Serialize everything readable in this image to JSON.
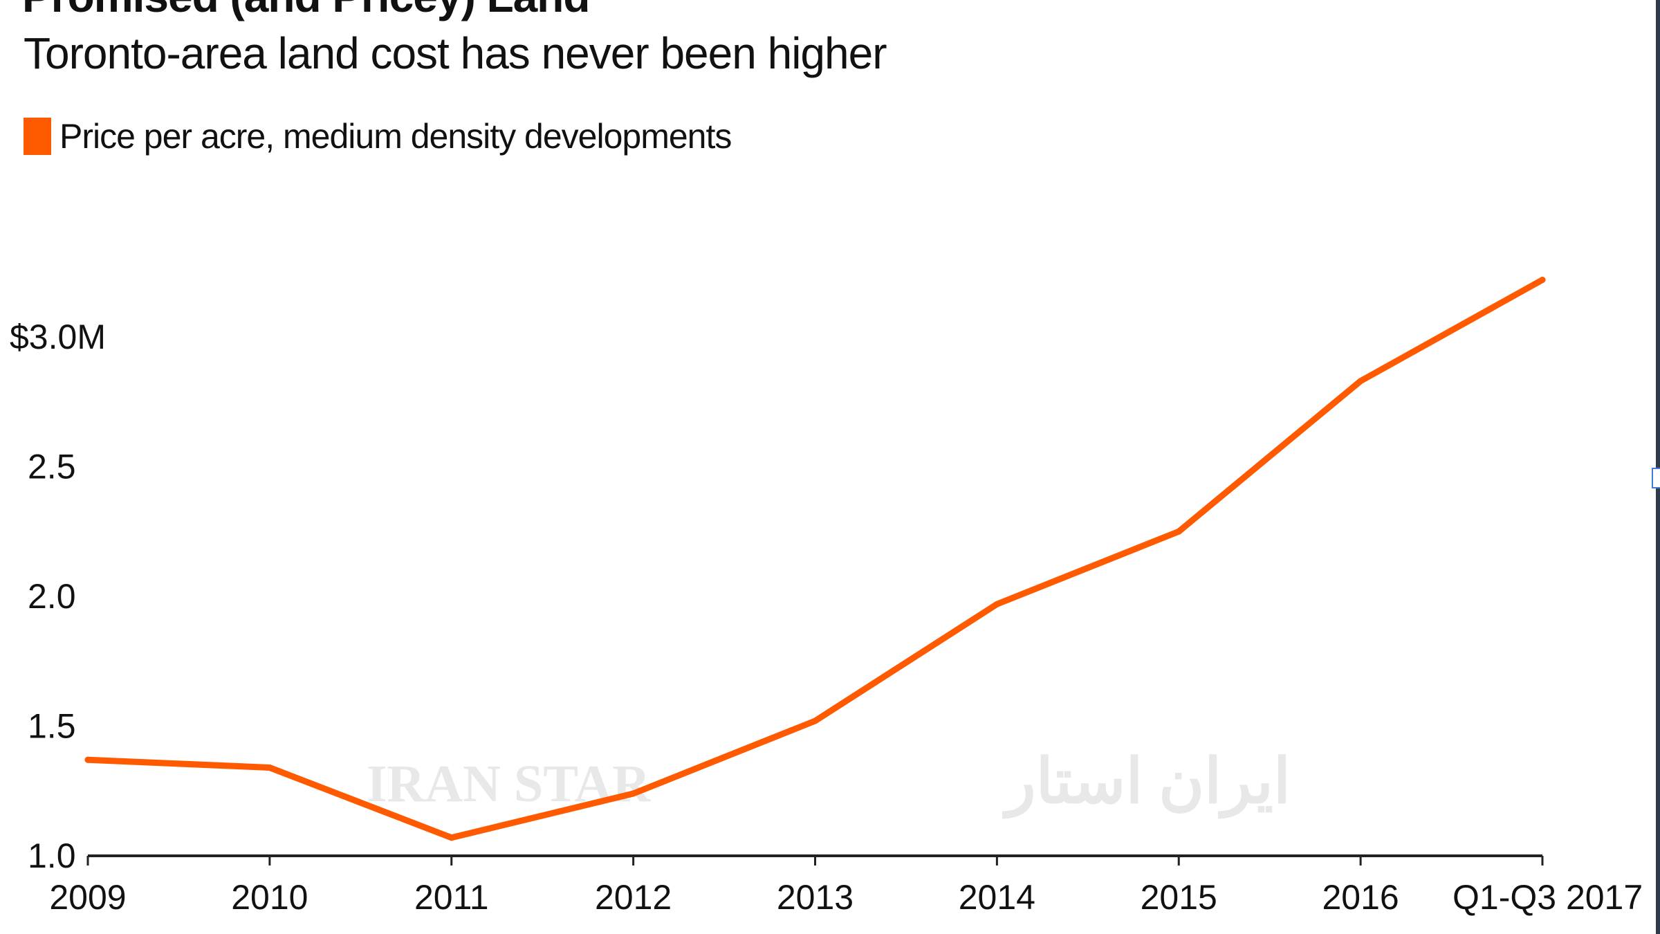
{
  "header": {
    "title": "Promised (and Pricey) Land",
    "subtitle": "Toronto-area land cost has never been higher"
  },
  "watermarks": {
    "latin": "IRAN STAR",
    "persian": "ایران استار"
  },
  "colors": {
    "series": "#ff5a00",
    "axis": "#222222",
    "text": "#111111",
    "watermark": "#e8e8e8"
  },
  "chart_data": {
    "type": "line",
    "title": "Promised (and Pricey) Land",
    "subtitle": "Toronto-area land cost has never been higher",
    "xlabel": "",
    "ylabel": "",
    "x": [
      "2009",
      "2010",
      "2011",
      "2012",
      "2013",
      "2014",
      "2015",
      "2016",
      "Q1-Q3 2017"
    ],
    "series": [
      {
        "name": "Price per acre, medium density developments",
        "color": "#ff5a00",
        "values": [
          1.37,
          1.34,
          1.07,
          1.24,
          1.52,
          1.97,
          2.25,
          2.83,
          3.22
        ]
      }
    ],
    "yticks": [
      1.0,
      1.5,
      2.0,
      2.5,
      3.0
    ],
    "ytick_labels": [
      "1.0",
      "1.5",
      "2.0",
      "2.5",
      "$3.0M"
    ],
    "ylim": [
      1.0,
      3.5
    ],
    "grid": false,
    "legend": "top-left"
  }
}
